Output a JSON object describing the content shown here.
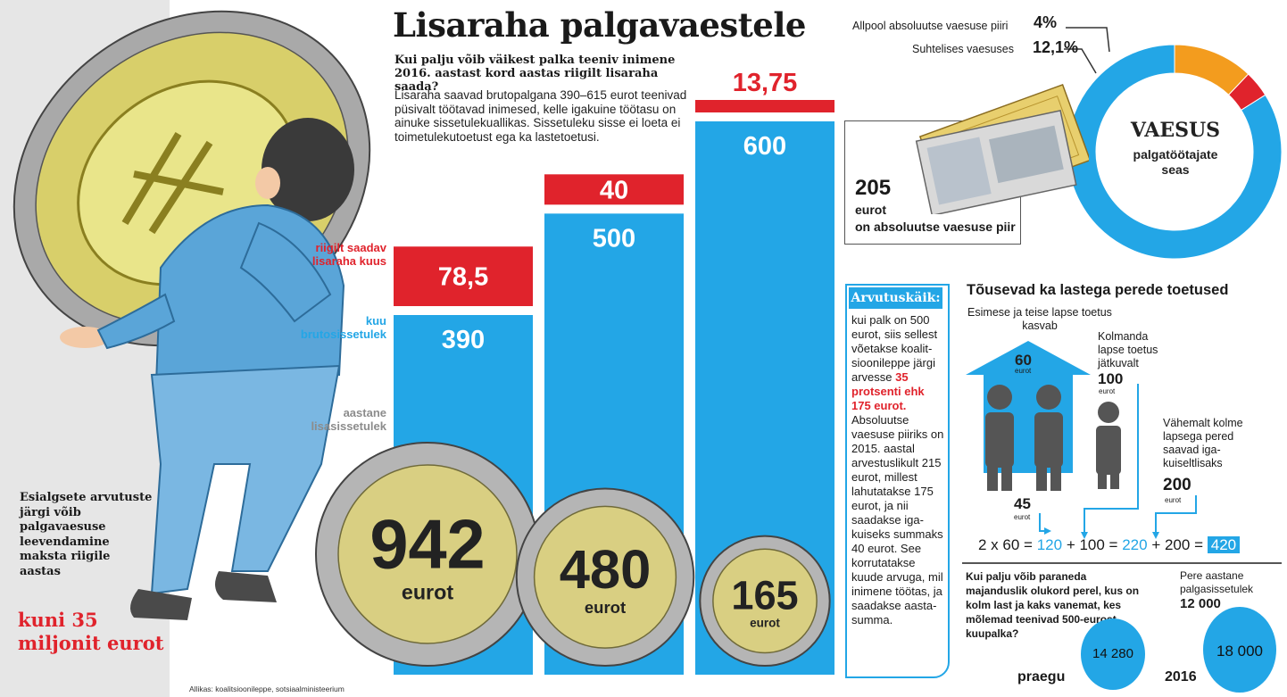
{
  "title": "Lisaraha palgavaestele",
  "subtitle": "Kui palju võib väikest palka teeniv inimene 2016. aastast kord aastas riigilt lisaraha saada?",
  "intro": "Lisaraha saavad brutopalgana 390–615 eurot teenivad püsivalt töötavad inimesed, kelle igakuine töötasu on ainuke sissetulekuallikas. Sissetuleku sisse ei loeta ei toimetulekutoetust ega ka lastetoetusi.",
  "labels": {
    "monthly_extra": "riigilt saadav lisaraha kuus",
    "gross_income": "kuu brutosissetulek",
    "annual_extra": "aastane lisasissetulek"
  },
  "chart_data": {
    "type": "bar",
    "title": "Lisaraha palgavaestele",
    "categories": [
      "390",
      "500",
      "600"
    ],
    "series": [
      {
        "name": "kuu brutosissetulek",
        "values": [
          390,
          500,
          600
        ]
      },
      {
        "name": "riigilt saadav lisaraha kuus",
        "values": [
          78.5,
          40,
          13.75
        ]
      },
      {
        "name": "aastane lisasissetulek",
        "values": [
          942,
          480,
          165
        ]
      }
    ],
    "display": {
      "gross": [
        "390",
        "500",
        "600"
      ],
      "extra": [
        "78,5",
        "40",
        "13,75"
      ],
      "annual": [
        "942",
        "480",
        "165"
      ],
      "annual_unit": "eurot"
    },
    "colors": {
      "gross": "#23a6e6",
      "extra": "#e0232c"
    }
  },
  "left_note": "Esialgsete arvutuste järgi võib palgavaesuse leevendamine maksta riigile aastas",
  "left_big": "kuni 35 miljonit eurot",
  "source": "Allikas: koalitsioonileppe, sotsiaalministeerium",
  "calc": {
    "title": "Arvutuskäik:",
    "text_before": "kui palk on 500 eurot, siis sellest võe­takse koalit­sioonileppe jär­gi arvesse",
    "highlight": "35 protsenti ehk 175 eurot.",
    "text_after": "Absoluutse vaesuse piiriks on 2015. aastal arvestuslikult 215 eurot, mil­lest lahutatakse 175 eurot, ja nii saadakse iga­kuiseks sum­maks 40 eurot. See korrutatak­se kuude arvu­ga, mil inimene töötas, ja saa­dakse aasta­summa."
  },
  "poverty": {
    "absolute_label": "Allpool absoluutse vaesuse piiri",
    "absolute_value": "4%",
    "relative_label": "Suhtelises vaesuses",
    "relative_value": "12,1%",
    "center_title": "VAESUS",
    "center_sub": "palgatöötajate seas",
    "threshold_value": "205",
    "threshold_unit": "eurot",
    "threshold_label": "on absoluutse vaesuse piir",
    "colors": {
      "absolute": "#e0232c",
      "relative": "#f39c1e",
      "rest": "#23a6e6"
    }
  },
  "family": {
    "title": "Tõusevad ka lastega perede toetused",
    "first_second_label": "Esimese ja teise lapse toetus kasvab",
    "from_value": "45",
    "from_unit": "eurot",
    "to_value": "60",
    "to_unit": "eurot",
    "third_label": "Kolmanda lapse toetus jätkuvalt",
    "third_value": "100",
    "third_unit": "eurot",
    "large_label": "Vähemalt kolme lapsega pered saavad iga­kuiseltlisaks",
    "large_value": "200",
    "large_unit": "eurot",
    "eq": {
      "p1": "2 x 60 =",
      "v1": "120",
      "p2": "+ 100 =",
      "v2": "220",
      "p3": "+ 200 =",
      "v3": "420"
    },
    "question": "Kui palju võib paraneda majanduslik olukord perel, kus on kolm last ja kaks vanemat, kes mõlemad teenivad 500-eurost kuupalka?",
    "income_label": "Pere aastane palgasissetulek",
    "income_value": "12 000",
    "now_label": "praegu",
    "now_value": "14 280",
    "year_label": "2016",
    "year_value": "18 000"
  }
}
